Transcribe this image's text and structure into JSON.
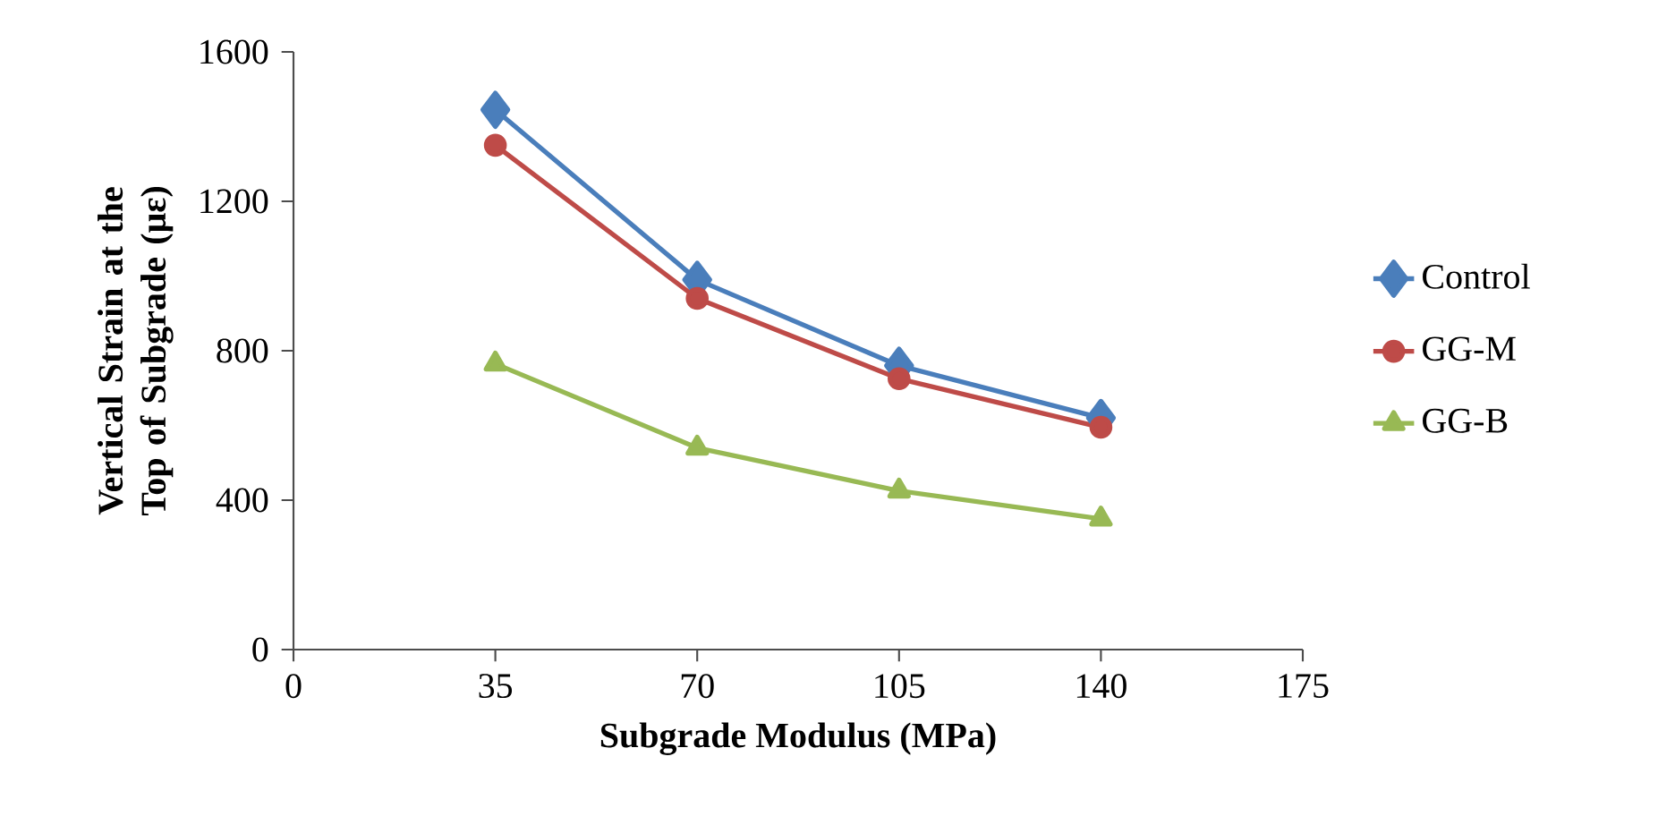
{
  "chart_data": {
    "type": "line",
    "xlabel": "Subgrade Modulus (MPa)",
    "ylabel": "Vertical Strain at the Top of Subgrade (με)",
    "x": [
      35,
      70,
      105,
      140
    ],
    "series": [
      {
        "name": "Control",
        "color": "#4a7ebb",
        "marker": "diamond",
        "values": [
          1445,
          990,
          760,
          620
        ]
      },
      {
        "name": "GG-M",
        "color": "#be4b48",
        "marker": "circle",
        "values": [
          1350,
          940,
          725,
          595
        ]
      },
      {
        "name": "GG-B",
        "color": "#98b954",
        "marker": "triangle",
        "values": [
          765,
          540,
          425,
          350
        ]
      }
    ],
    "xlim": [
      0,
      175
    ],
    "xticks": [
      0,
      35,
      70,
      105,
      140,
      175
    ],
    "ylim": [
      0,
      1600
    ],
    "yticks": [
      0,
      400,
      800,
      1200,
      1600
    ],
    "grid": false,
    "legend": "right",
    "line_style": "solid"
  }
}
